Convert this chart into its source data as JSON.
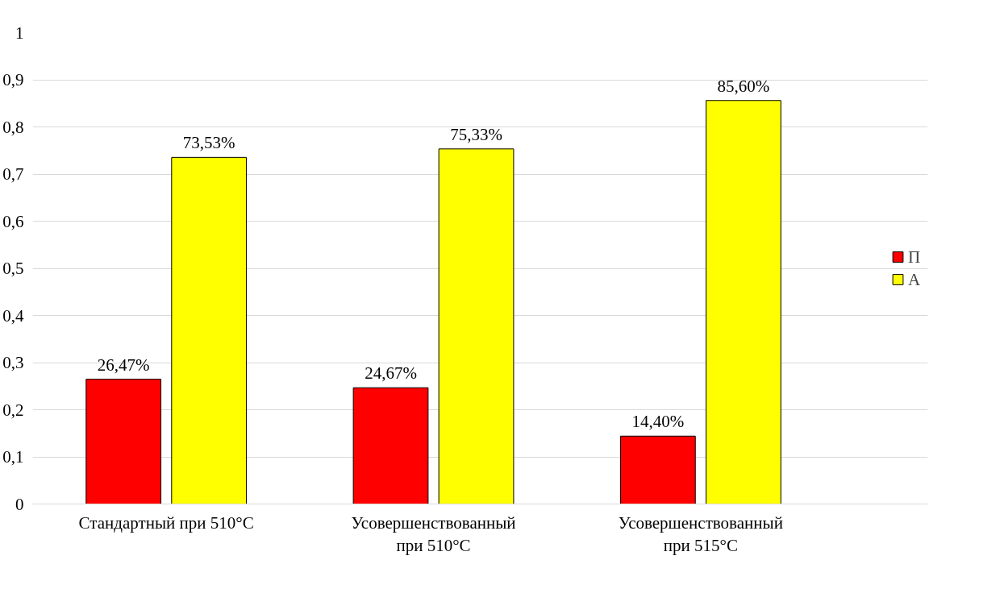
{
  "chart_data": {
    "type": "bar",
    "categories": [
      "Стандартный при 510°C",
      "Усовершенствованный\nпри 510°C",
      "Усовершенствованный\nпри 515°C"
    ],
    "series": [
      {
        "name": "П",
        "color": "#ff0000",
        "values": [
          0.2647,
          0.2467,
          0.144
        ],
        "value_labels": [
          "26,47%",
          "24,67%",
          "14,40%"
        ]
      },
      {
        "name": "А",
        "color": "#ffff00",
        "values": [
          0.7353,
          0.7533,
          0.856
        ],
        "value_labels": [
          "73,53%",
          "75,33%",
          "85,60%"
        ]
      }
    ],
    "ylim": [
      0,
      1
    ],
    "yticks": [
      0,
      {
        "value": 0.1,
        "label": "0,1"
      },
      {
        "value": 0.2,
        "label": "0,2"
      },
      {
        "value": 0.3,
        "label": "0,3"
      },
      {
        "value": 0.4,
        "label": "0,4"
      },
      {
        "value": 0.5,
        "label": "0,5"
      },
      {
        "value": 0.6,
        "label": "0,6"
      },
      {
        "value": 0.7,
        "label": "0,7"
      },
      {
        "value": 0.8,
        "label": "0,8"
      },
      {
        "value": 0.9,
        "label": "0,9"
      },
      1
    ],
    "grid": "y",
    "legend": "right"
  }
}
